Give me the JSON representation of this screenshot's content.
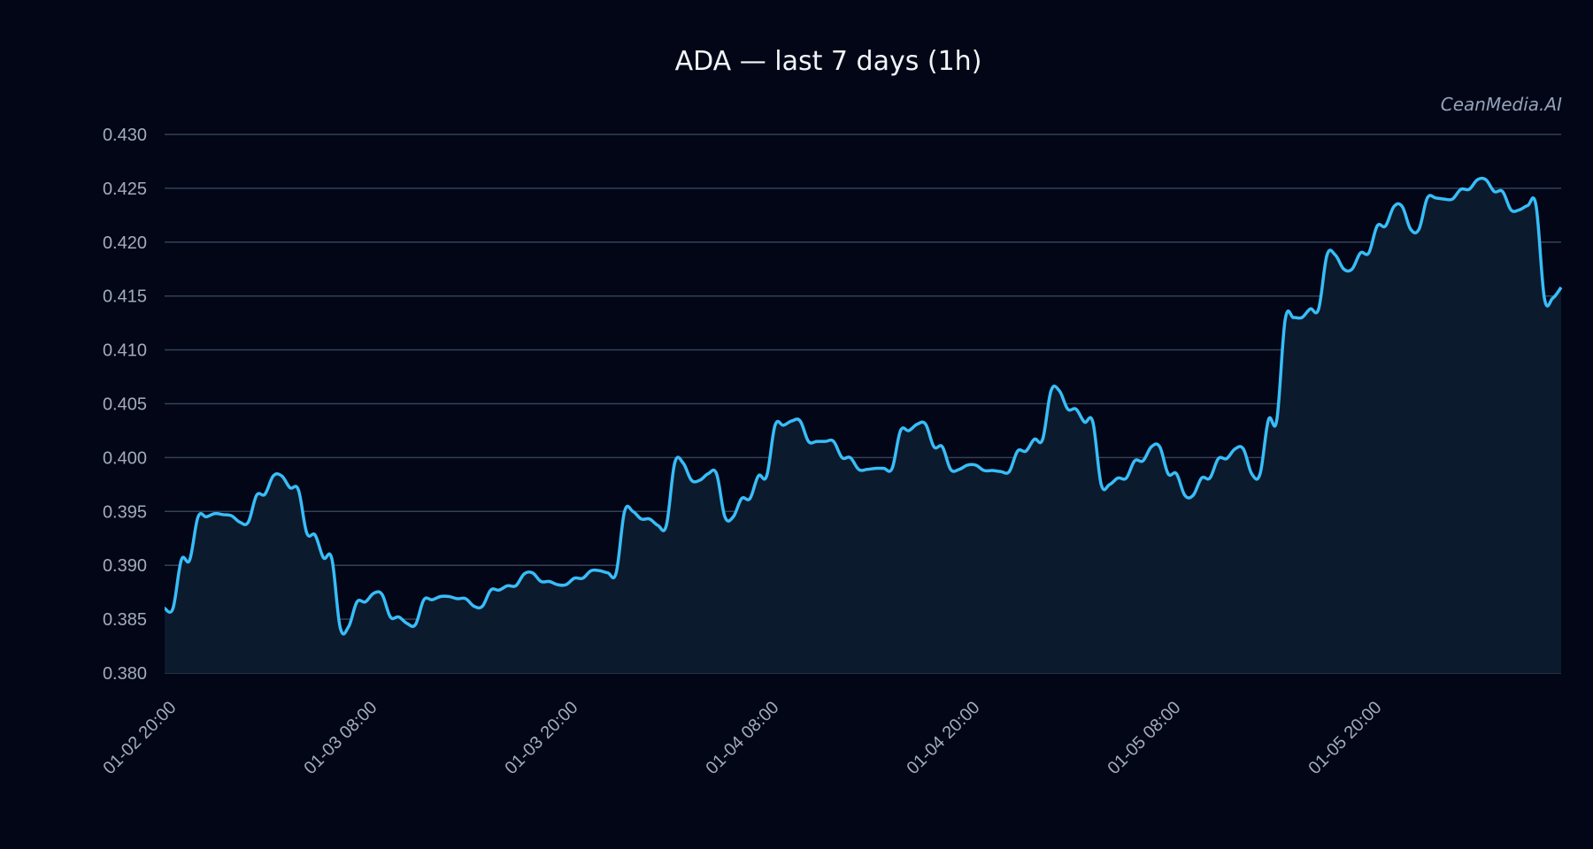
{
  "chart_data": {
    "type": "area",
    "title": "ADA — last 7 days (1h)",
    "watermark": "CeanMedia.AI",
    "xlabel": "",
    "ylabel": "",
    "ylim": [
      0.38,
      0.43
    ],
    "yticks": [
      "0.430",
      "0.425",
      "0.420",
      "0.415",
      "0.410",
      "0.405",
      "0.400",
      "0.395",
      "0.390",
      "0.385",
      "0.380"
    ],
    "xticks": [
      "01-02 20:00",
      "01-03 08:00",
      "01-03 20:00",
      "01-04 08:00",
      "01-04 20:00",
      "01-05 08:00",
      "01-05 20:00"
    ],
    "grid": true,
    "colors": {
      "line": "#38bdf8",
      "fill": "#0b1a2c",
      "grid": "#334155",
      "background": "#020617"
    },
    "series": [
      {
        "values": [
          0.386,
          0.386,
          0.3905,
          0.3905,
          0.3945,
          0.3945,
          0.3948,
          0.3947,
          0.3946,
          0.394,
          0.394,
          0.3965,
          0.3966,
          0.3983,
          0.3983,
          0.3972,
          0.397,
          0.393,
          0.3928,
          0.3907,
          0.3906,
          0.3842,
          0.3843,
          0.3866,
          0.3866,
          0.3874,
          0.3873,
          0.3852,
          0.3852,
          0.3846,
          0.3845,
          0.3868,
          0.3868,
          0.3871,
          0.3871,
          0.3869,
          0.3869,
          0.3862,
          0.3862,
          0.3877,
          0.3877,
          0.3881,
          0.3881,
          0.3892,
          0.3893,
          0.3885,
          0.3885,
          0.3882,
          0.3882,
          0.3888,
          0.3888,
          0.3895,
          0.3895,
          0.3893,
          0.3893,
          0.395,
          0.395,
          0.3943,
          0.3943,
          0.3937,
          0.3937,
          0.3995,
          0.3995,
          0.3979,
          0.3979,
          0.3985,
          0.3985,
          0.3945,
          0.3945,
          0.3962,
          0.3962,
          0.3983,
          0.3983,
          0.403,
          0.403,
          0.4034,
          0.4034,
          0.4015,
          0.4015,
          0.4015,
          0.4015,
          0.4,
          0.4,
          0.3989,
          0.3989,
          0.399,
          0.399,
          0.399,
          0.4025,
          0.4025,
          0.4031,
          0.4031,
          0.401,
          0.401,
          0.3989,
          0.3989,
          0.3993,
          0.3993,
          0.3988,
          0.3988,
          0.3987,
          0.3987,
          0.4006,
          0.4006,
          0.4017,
          0.4017,
          0.4062,
          0.4062,
          0.4045,
          0.4045,
          0.4033,
          0.4033,
          0.3975,
          0.3975,
          0.3981,
          0.3981,
          0.3997,
          0.3997,
          0.401,
          0.401,
          0.3985,
          0.3985,
          0.3965,
          0.3965,
          0.3981,
          0.3981,
          0.3999,
          0.3999,
          0.4008,
          0.4008,
          0.3985,
          0.3985,
          0.4035,
          0.4035,
          0.4128,
          0.413,
          0.413,
          0.4138,
          0.4138,
          0.4188,
          0.4188,
          0.4175,
          0.4175,
          0.419,
          0.419,
          0.4215,
          0.4215,
          0.4233,
          0.4233,
          0.4212,
          0.4212,
          0.4241,
          0.4241,
          0.424,
          0.424,
          0.4249,
          0.4249,
          0.4258,
          0.4258,
          0.4247,
          0.4247,
          0.423,
          0.423,
          0.4234,
          0.4234,
          0.4148,
          0.4148,
          0.4158
        ]
      }
    ]
  }
}
